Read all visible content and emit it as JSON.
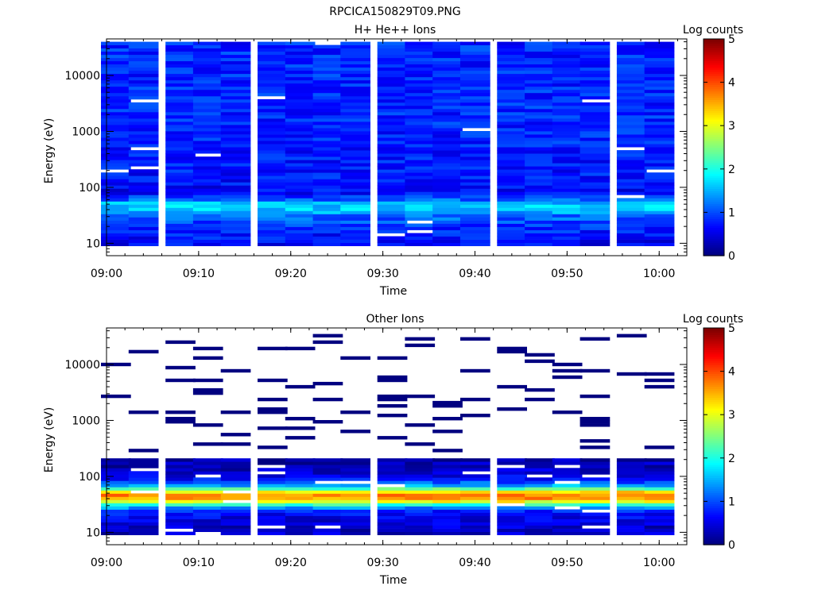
{
  "figure": {
    "filename": "RPCICA150829T09.PNG"
  },
  "colorbar": {
    "label": "Log counts",
    "ticks": [
      "0",
      "1",
      "2",
      "3",
      "4",
      "5"
    ],
    "range": [
      0,
      5
    ],
    "colormap": "jet"
  },
  "chart_data": [
    {
      "type": "heatmap",
      "title": "H+ He++ Ions",
      "xlabel": "Time",
      "ylabel": "Energy (eV)",
      "x_ticks": [
        "09:00",
        "09:10",
        "09:20",
        "09:30",
        "09:40",
        "09:50",
        "10:00"
      ],
      "y_ticks": [
        "10",
        "100",
        "1000",
        "10000"
      ],
      "y_scale": "log",
      "y_range": [
        6,
        45000
      ],
      "time_range": [
        "09:00",
        "10:03"
      ],
      "colorbar_label": "Log counts",
      "color_range": [
        0,
        5
      ],
      "time_bins": [
        "09:01",
        "09:04",
        "09:08",
        "09:11",
        "09:14",
        "09:18",
        "09:21",
        "09:24",
        "09:27",
        "09:31",
        "09:34",
        "09:37",
        "09:40",
        "09:44",
        "09:47",
        "09:50",
        "09:53",
        "09:57",
        "10:00"
      ],
      "energy_profile": [
        {
          "energy": 8,
          "log_counts": 0.55
        },
        {
          "energy": 12,
          "log_counts": 0.65
        },
        {
          "energy": 18,
          "log_counts": 0.8
        },
        {
          "energy": 25,
          "log_counts": 1.0
        },
        {
          "energy": 32,
          "log_counts": 1.2
        },
        {
          "energy": 40,
          "log_counts": 1.6
        },
        {
          "energy": 50,
          "log_counts": 1.65
        },
        {
          "energy": 60,
          "log_counts": 1.1
        },
        {
          "energy": 80,
          "log_counts": 0.6
        },
        {
          "energy": 150,
          "log_counts": 0.7
        },
        {
          "energy": 500,
          "log_counts": 0.75
        },
        {
          "energy": 2000,
          "log_counts": 0.8
        },
        {
          "energy": 10000,
          "log_counts": 0.8
        },
        {
          "energy": 40000,
          "log_counts": 0.8
        }
      ]
    },
    {
      "type": "heatmap",
      "title": "Other Ions",
      "xlabel": "Time",
      "ylabel": "Energy (eV)",
      "x_ticks": [
        "09:00",
        "09:10",
        "09:20",
        "09:30",
        "09:40",
        "09:50",
        "10:00"
      ],
      "y_ticks": [
        "10",
        "100",
        "1000",
        "10000"
      ],
      "y_scale": "log",
      "y_range": [
        6,
        45000
      ],
      "time_range": [
        "09:00",
        "10:03"
      ],
      "colorbar_label": "Log counts",
      "color_range": [
        0,
        5
      ],
      "time_bins": [
        "09:01",
        "09:04",
        "09:08",
        "09:11",
        "09:14",
        "09:18",
        "09:21",
        "09:24",
        "09:27",
        "09:31",
        "09:34",
        "09:37",
        "09:40",
        "09:44",
        "09:47",
        "09:50",
        "09:53",
        "09:57",
        "10:00"
      ],
      "energy_profile": [
        {
          "energy": 8,
          "log_counts": 0.3
        },
        {
          "energy": 12,
          "log_counts": 0.35
        },
        {
          "energy": 18,
          "log_counts": 0.5
        },
        {
          "energy": 25,
          "log_counts": 0.8
        },
        {
          "energy": 30,
          "log_counts": 1.8
        },
        {
          "energy": 38,
          "log_counts": 3.5
        },
        {
          "energy": 45,
          "log_counts": 3.8
        },
        {
          "energy": 55,
          "log_counts": 3.1
        },
        {
          "energy": 65,
          "log_counts": 1.6
        },
        {
          "energy": 90,
          "log_counts": 0.6
        },
        {
          "energy": 150,
          "log_counts": 0.25
        },
        {
          "energy": 300,
          "log_counts": 0.1
        },
        {
          "energy": 3000,
          "log_counts": 0.05
        },
        {
          "energy": 40000,
          "log_counts": 0.05
        }
      ]
    }
  ]
}
